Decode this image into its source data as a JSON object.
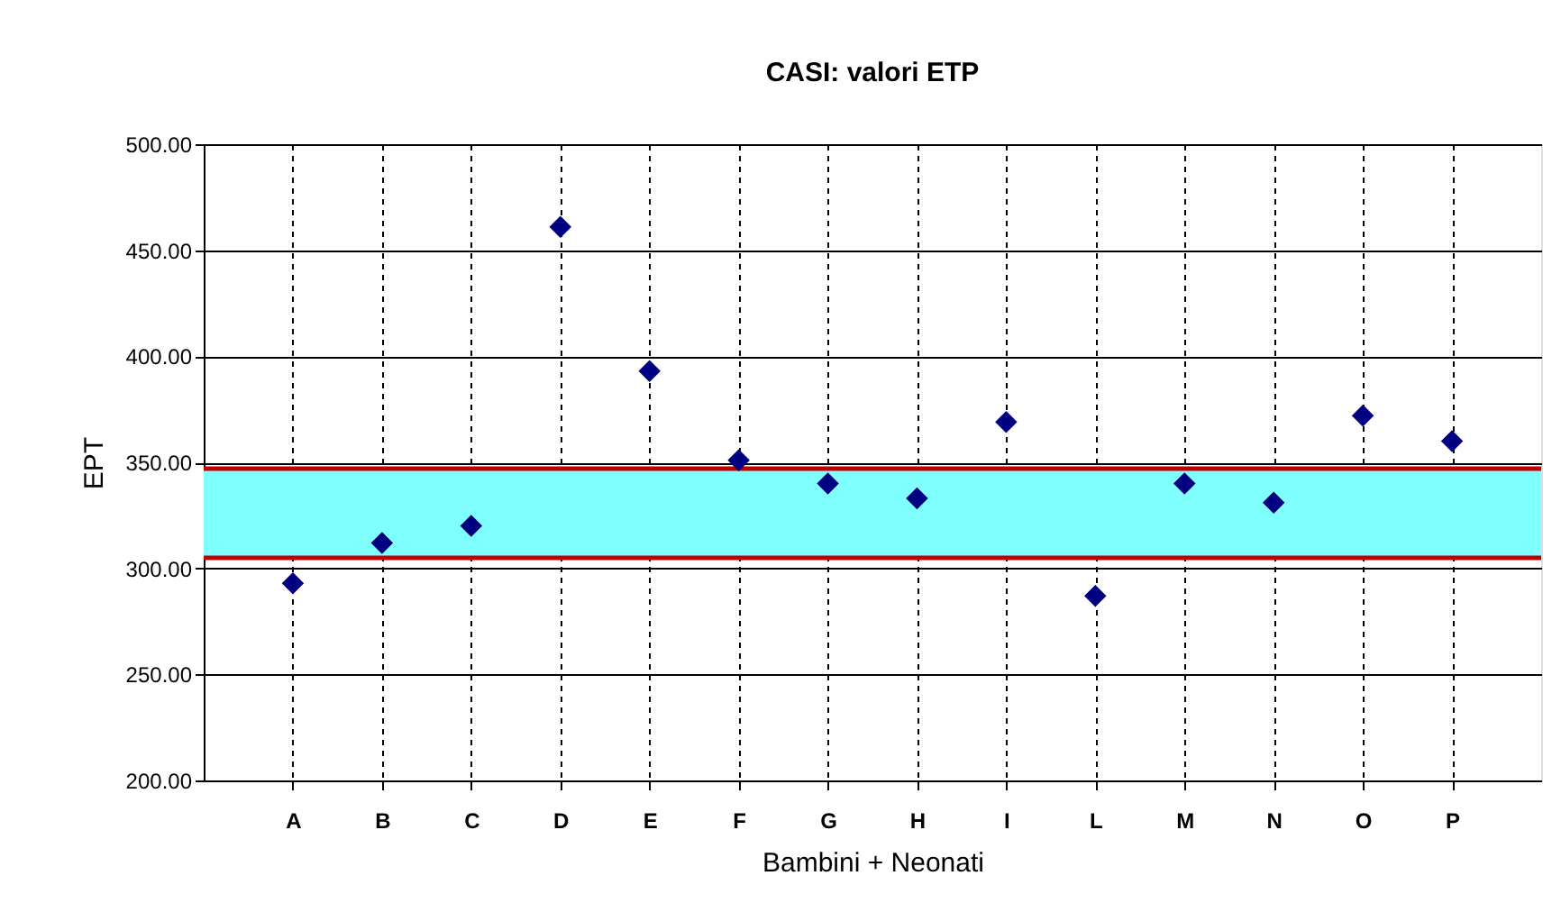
{
  "chart_data": {
    "type": "scatter",
    "title": "CASI: valori ETP",
    "xlabel": "Bambini + Neonati",
    "ylabel": "EPT",
    "categories": [
      "A",
      "B",
      "C",
      "D",
      "E",
      "F",
      "G",
      "H",
      "I",
      "L",
      "M",
      "N",
      "O",
      "P"
    ],
    "series": [
      {
        "color": "#000080",
        "values": [
          293,
          312,
          320,
          461,
          393,
          351,
          340,
          333,
          369,
          287,
          340,
          331,
          372,
          360
        ]
      }
    ],
    "marker": "diamond",
    "ylim": [
      200,
      500
    ],
    "yticks": [
      {
        "value": 200,
        "label": "200.00"
      },
      {
        "value": 250,
        "label": "250.00"
      },
      {
        "value": 300,
        "label": "300.00"
      },
      {
        "value": 350,
        "label": "350.00"
      },
      {
        "value": 400,
        "label": "400.00"
      },
      {
        "value": 450,
        "label": "450.00"
      },
      {
        "value": 500,
        "label": "500.00"
      }
    ],
    "bands": [
      {
        "axis": "y",
        "from": 305,
        "to": 347,
        "color": "#80ffff"
      }
    ],
    "ref_lines": [
      {
        "axis": "y",
        "value": 305,
        "color": "#c00000"
      },
      {
        "axis": "y",
        "value": 347,
        "color": "#c00000"
      }
    ],
    "grid": true
  }
}
